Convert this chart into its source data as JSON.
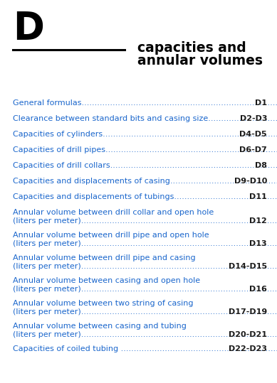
{
  "letter": "D",
  "title_line1": "capacities and",
  "title_line2": "annular volumes",
  "bg_color": "#ffffff",
  "letter_color": "#000000",
  "title_color": "#000000",
  "line_color": "#000000",
  "entries": [
    {
      "text": "General formulas",
      "dots": ".................................................................................................",
      "page": "D1",
      "two_lines": false,
      "line2": ""
    },
    {
      "text": "Clearance between standard bits and casing size......",
      "dots": "......................................................",
      "page": "D2-D3",
      "two_lines": false,
      "line2": ""
    },
    {
      "text": "Capacities of cylinders",
      "dots": ".................................................................................",
      "page": "D4-D5",
      "two_lines": false,
      "line2": ""
    },
    {
      "text": "Capacities of drill pipes",
      "dots": "...............................................................................",
      "page": "D6-D7",
      "two_lines": false,
      "line2": ""
    },
    {
      "text": "Capacities of drill collars",
      "dots": ".............................................................................",
      "page": "D8",
      "two_lines": false,
      "line2": ""
    },
    {
      "text": "Capacities and displacements of casing",
      "dots": ".................................................................",
      "page": "D9-D10",
      "two_lines": false,
      "line2": ""
    },
    {
      "text": "Capacities and displacements of tubings",
      "dots": "................................................................",
      "page": "D11",
      "two_lines": false,
      "line2": ""
    },
    {
      "text": "Annular volume between drill collar and open hole",
      "dots": "",
      "page": "D12",
      "two_lines": true,
      "line2": "(liters per meter)"
    },
    {
      "text": "Annular volume between drill pipe and open hole",
      "dots": "",
      "page": "D13",
      "two_lines": true,
      "line2": "(liters per meter)"
    },
    {
      "text": "Annular volume between drill pipe and casing",
      "dots": "",
      "page": "D14-D15",
      "two_lines": true,
      "line2": "(liters per meter)"
    },
    {
      "text": "Annular volume between casing and open hole",
      "dots": "",
      "page": "D16",
      "two_lines": true,
      "line2": "(liters per meter)"
    },
    {
      "text": "Annular volume between two string of casing",
      "dots": "",
      "page": "D17-D19",
      "two_lines": true,
      "line2": "(liters per meter)"
    },
    {
      "text": "Annular volume between casing and tubing",
      "dots": "",
      "page": "D20-D21",
      "two_lines": true,
      "line2": "(liters per meter)"
    },
    {
      "text": "Capacities of coiled tubing ",
      "dots": ".....................................................................",
      "page": "D22-D23",
      "two_lines": false,
      "line2": ""
    }
  ],
  "text_color": "#1a66cc",
  "page_color": "#1a1a1a",
  "dot_color": "#1a66cc",
  "entry_fontsize": 8.0,
  "title_fontsize": 13.5,
  "letter_fontsize": 38,
  "fig_width": 3.89,
  "fig_height": 5.39,
  "dpi": 100
}
